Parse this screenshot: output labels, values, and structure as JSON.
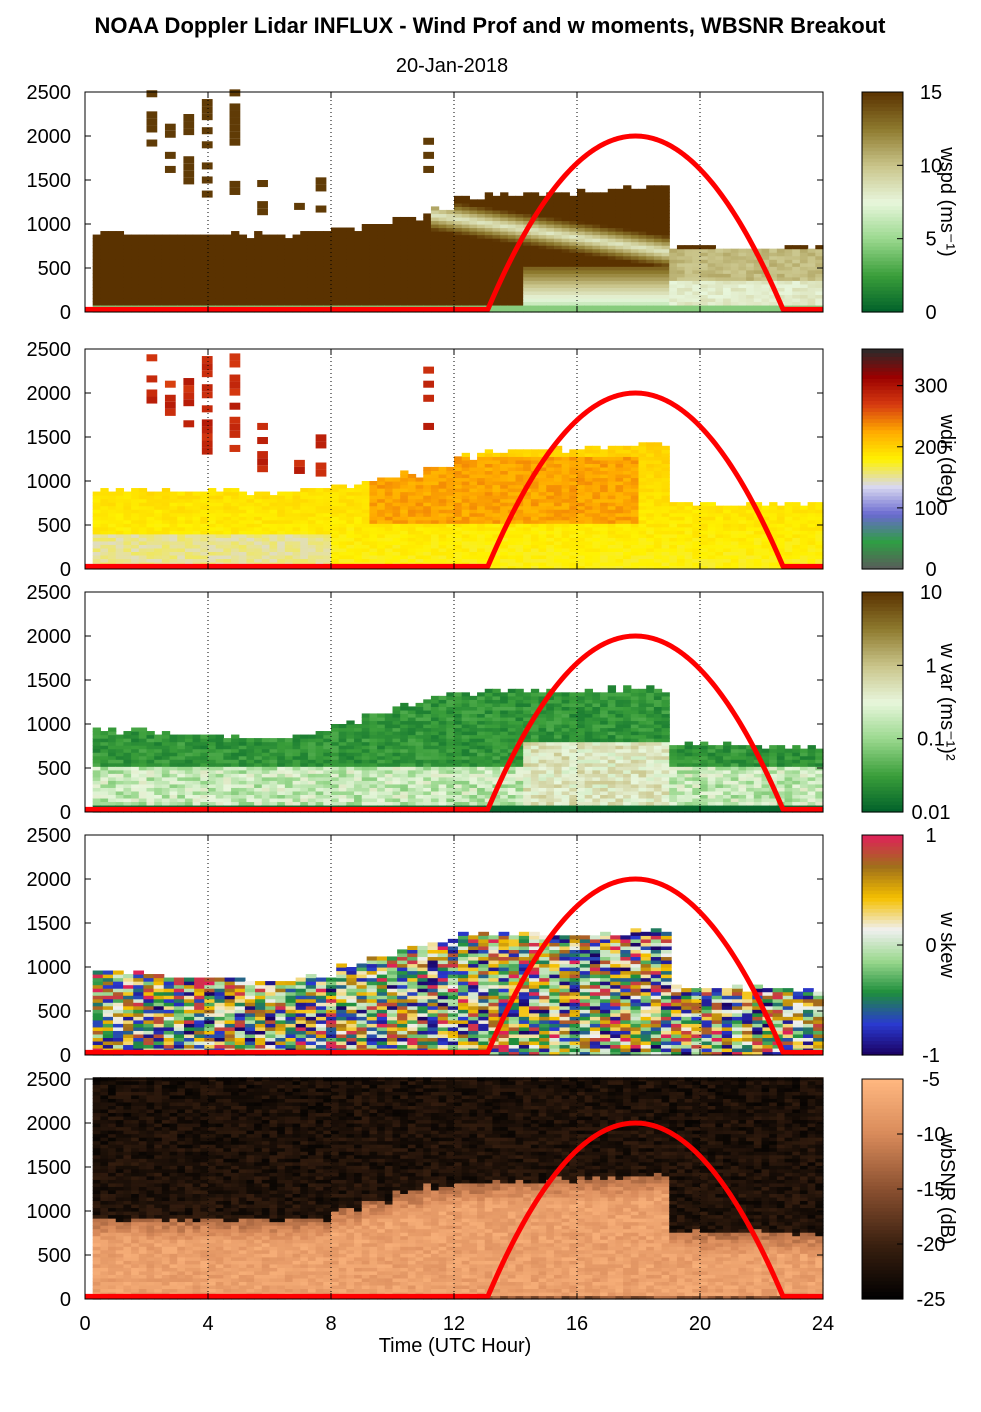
{
  "title": "NOAA Doppler Lidar INFLUX - Wind Prof and w moments, WBSNR Breakout",
  "subtitle": "20-Jan-2018",
  "chart_data": {
    "type": "heatmap",
    "xlabel": "Time (UTC Hour)",
    "xlim": [
      0,
      24
    ],
    "xticks": [
      "0",
      "4",
      "8",
      "12",
      "16",
      "20",
      "24"
    ],
    "ylim": [
      0,
      2500
    ],
    "yticks": [
      "0",
      "500",
      "1000",
      "1500",
      "2000",
      "2500"
    ],
    "grid": "dotted vertical lines every 4 hours",
    "overlay": {
      "color": "#ff0000",
      "start_hour": 13.1,
      "peak_hour": 17.9,
      "end_hour": 22.7,
      "peak_height": 2000,
      "base_height": 30
    },
    "panels": [
      {
        "colorbar_label": "wspd (ms⁻¹)",
        "clim": [
          0,
          15
        ],
        "colorbar_ticks": [
          "0",
          "5",
          "10",
          "15"
        ],
        "colormap": [
          "#00602a",
          "#3a9e3a",
          "#9ad88e",
          "#e8f6dc",
          "#c9c48a",
          "#8e7a2e",
          "#5a3200"
        ],
        "data_top_hourly": [
          880,
          880,
          860,
          860,
          860,
          860,
          860,
          880,
          920,
          980,
          1060,
          1140,
          1260,
          1320,
          1320,
          1340,
          1360,
          1380,
          1400,
          740,
          720,
          720,
          720,
          720
        ],
        "typical_values": {
          "aloft": 15,
          "low_level_jet_core_day": 8,
          "near_surface": 3
        }
      },
      {
        "colorbar_label": "wdir (deg)",
        "clim": [
          0,
          360
        ],
        "colorbar_ticks": [
          "0",
          "100",
          "200",
          "300"
        ],
        "colormap": [
          "#5a5a5a",
          "#2f9e44",
          "#6a6ad0",
          "#d8d8f0",
          "#fff200",
          "#ffaa00",
          "#d63a10",
          "#9a0000",
          "#2a2a2a"
        ],
        "data_top_hourly": [
          880,
          880,
          860,
          860,
          860,
          860,
          860,
          880,
          920,
          980,
          1060,
          1140,
          1260,
          1320,
          1320,
          1340,
          1360,
          1380,
          1400,
          740,
          720,
          720,
          720,
          720
        ],
        "typical_values": {
          "boundary_layer": 240,
          "above_jet": 290,
          "aloft_patches": 300
        }
      },
      {
        "colorbar_label": "w var (ms⁻¹)²",
        "clim": [
          0.01,
          10
        ],
        "scale": "log",
        "colorbar_ticks": [
          "0.01",
          "0.1",
          "1",
          "10"
        ],
        "colormap": [
          "#00602a",
          "#3a9e3a",
          "#9ad88e",
          "#e8f6dc",
          "#c9c48a",
          "#8e7a2e",
          "#5a3200"
        ],
        "data_top_hourly": [
          940,
          900,
          880,
          860,
          840,
          820,
          820,
          880,
          1000,
          1120,
          1200,
          1300,
          1340,
          1360,
          1360,
          1360,
          1360,
          1380,
          1380,
          760,
          740,
          740,
          720,
          720
        ],
        "typical_values": {
          "upper_mixed_layer": 0.02,
          "lower_mixed_layer": 0.5,
          "afternoon_surface": 2
        }
      },
      {
        "colorbar_label": "w skew",
        "clim": [
          -1,
          1
        ],
        "colorbar_ticks": [
          "-1",
          "0",
          "1"
        ],
        "colormap": [
          "#1a0060",
          "#2a3ad0",
          "#1e8e3c",
          "#9ad88e",
          "#f0f0f0",
          "#f5c000",
          "#a0701a",
          "#e0205a"
        ],
        "data_top_hourly": [
          940,
          900,
          880,
          860,
          840,
          820,
          820,
          880,
          1000,
          1120,
          1200,
          1300,
          1340,
          1360,
          1360,
          1360,
          1360,
          1380,
          1380,
          760,
          740,
          740,
          720,
          720
        ],
        "typical_values": {
          "range_observed": [
            -1,
            1
          ]
        }
      },
      {
        "colorbar_label": "wbSNR (dB)",
        "clim": [
          -25,
          -5
        ],
        "colorbar_ticks": [
          "-25",
          "-20",
          "-15",
          "-10",
          "-5"
        ],
        "colormap": [
          "#000000",
          "#3a2010",
          "#8a5030",
          "#d88a5a",
          "#ffb880"
        ],
        "data_top_hourly": [
          2500,
          2500,
          2500,
          2500,
          2500,
          2500,
          2500,
          2500,
          2500,
          2500,
          2500,
          2500,
          2500,
          2500,
          2500,
          2500,
          2500,
          2500,
          2500,
          2500,
          2500,
          2500,
          2500,
          2500
        ],
        "bright_layer_top_hourly": [
          900,
          900,
          880,
          880,
          880,
          880,
          880,
          900,
          1000,
          1100,
          1200,
          1260,
          1300,
          1320,
          1320,
          1340,
          1360,
          1360,
          1380,
          760,
          740,
          740,
          720,
          720
        ],
        "typical_values": {
          "boundary_layer": -7,
          "free_troposphere": -23
        }
      }
    ]
  }
}
